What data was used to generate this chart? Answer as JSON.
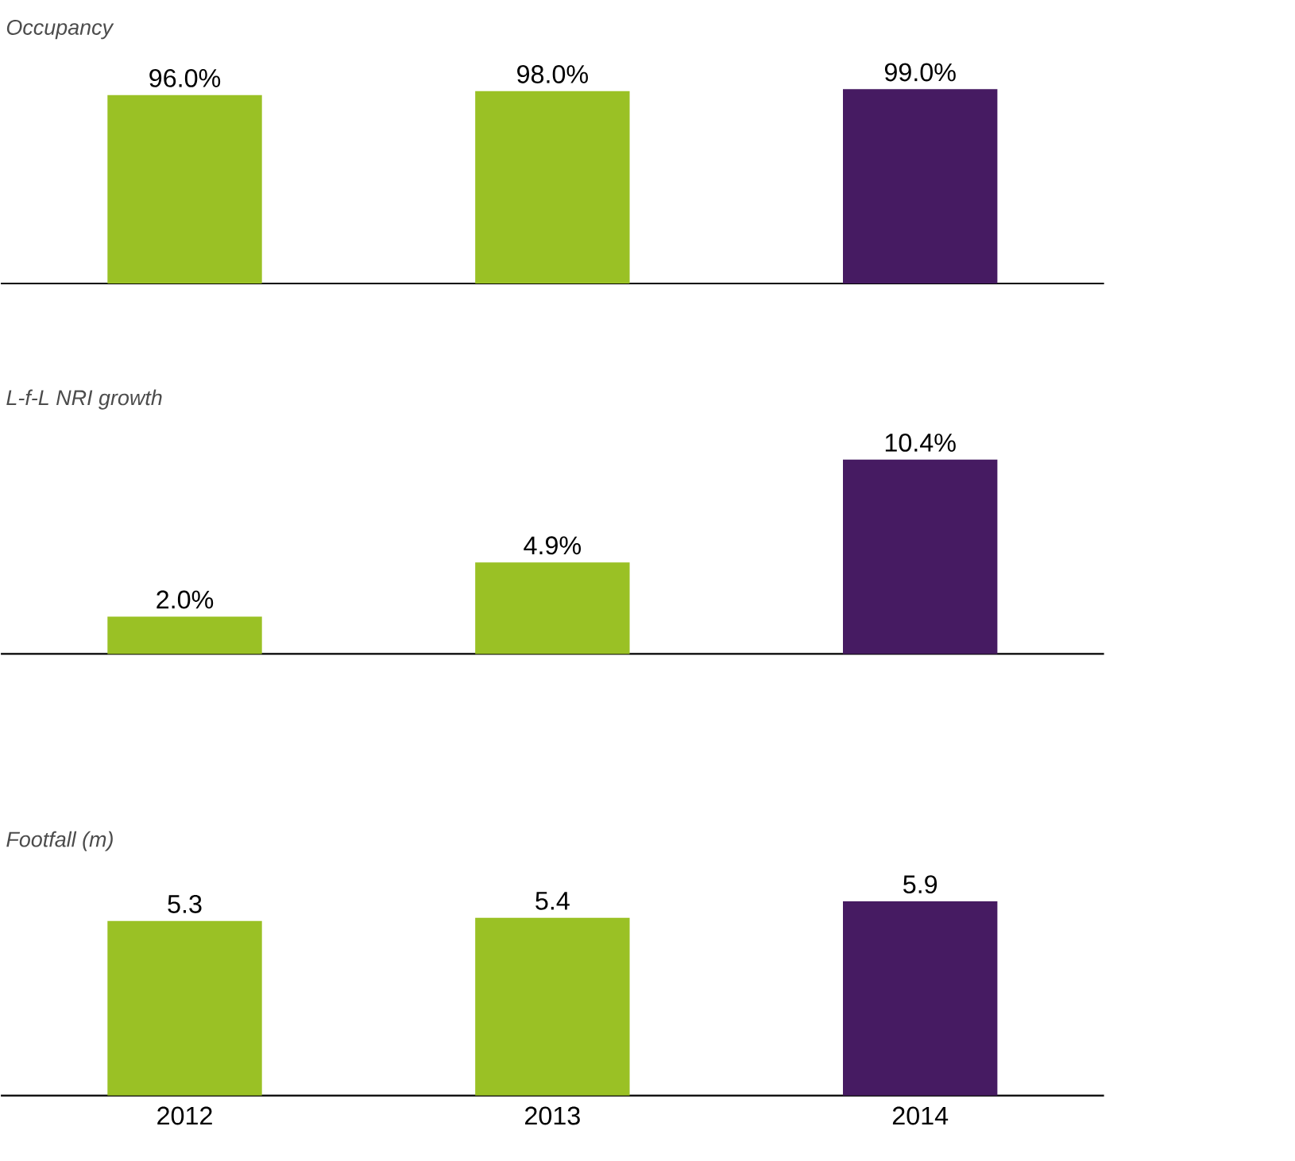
{
  "chart_data": [
    {
      "type": "bar",
      "title": "Occupancy",
      "categories": [
        "2012",
        "2013",
        "2014"
      ],
      "values": [
        96.0,
        98.0,
        99.0
      ],
      "value_labels": [
        "96.0%",
        "98.0%",
        "99.0%"
      ],
      "colors": [
        "#9ac125",
        "#9ac125",
        "#461b62"
      ],
      "tick_labels": false
    },
    {
      "type": "bar",
      "title": "L-f-L NRI growth",
      "categories": [
        "2012",
        "2013",
        "2014"
      ],
      "values": [
        2.0,
        4.9,
        10.4
      ],
      "value_labels": [
        "2.0%",
        "4.9%",
        "10.4%"
      ],
      "colors": [
        "#9ac125",
        "#9ac125",
        "#461b62"
      ],
      "tick_labels": false
    },
    {
      "type": "bar",
      "title": "Footfall (m)",
      "categories": [
        "2012",
        "2013",
        "2014"
      ],
      "values": [
        5.3,
        5.4,
        5.9
      ],
      "value_labels": [
        "5.3",
        "5.4",
        "5.9"
      ],
      "colors": [
        "#9ac125",
        "#9ac125",
        "#461b62"
      ],
      "tick_labels": "x"
    }
  ]
}
